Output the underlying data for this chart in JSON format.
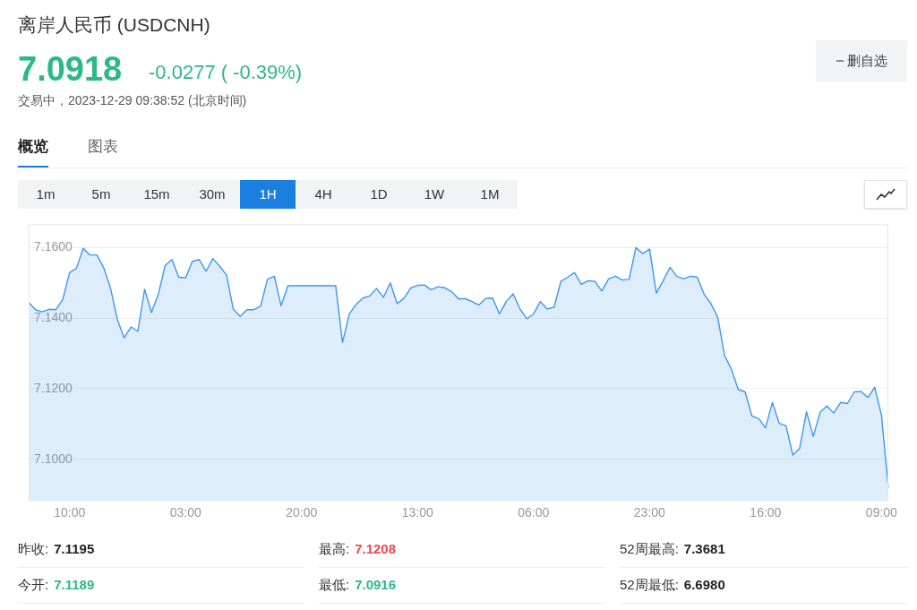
{
  "chart_data": {
    "type": "area",
    "title": "离岸人民币 (USDCNH)",
    "annotations": [
      "7.0918",
      "-0.0277 ( -0.39%)",
      "交易中，2023-12-29 09:38:52 (北京时间)",
      "删自选",
      "概览",
      "图表",
      "1m",
      "5m",
      "15m",
      "30m",
      "1H",
      "4H",
      "1D",
      "1W",
      "1M",
      "昨收:",
      "7.1195",
      "最高:",
      "7.1208",
      "52周最高:",
      "7.3681",
      "今开:",
      "7.1189",
      "最低:",
      "7.0916",
      "52周最低:",
      "6.6980"
    ],
    "categories": [
      null,
      null,
      null,
      null,
      null,
      null,
      "10:00",
      null,
      null,
      null,
      null,
      null,
      null,
      null,
      null,
      null,
      null,
      null,
      null,
      null,
      null,
      null,
      null,
      "03:00",
      null,
      null,
      null,
      null,
      null,
      null,
      null,
      null,
      null,
      null,
      null,
      null,
      null,
      null,
      null,
      null,
      "20:00",
      null,
      null,
      null,
      null,
      null,
      null,
      null,
      null,
      null,
      null,
      null,
      null,
      null,
      null,
      null,
      null,
      "13:00",
      null,
      null,
      null,
      null,
      null,
      null,
      null,
      null,
      null,
      null,
      null,
      null,
      null,
      null,
      null,
      null,
      "06:00",
      null,
      null,
      null,
      null,
      null,
      null,
      null,
      null,
      null,
      null,
      null,
      null,
      null,
      null,
      null,
      null,
      "23:00",
      null,
      null,
      null,
      null,
      null,
      null,
      null,
      null,
      null,
      null,
      null,
      null,
      null,
      null,
      null,
      null,
      "16:00",
      null,
      null,
      null,
      null,
      null,
      null,
      null,
      null,
      null,
      null,
      null,
      null,
      null,
      null,
      null,
      null,
      "09:00",
      null
    ],
    "series": [
      {
        "color": "#3d97f0",
        "values": [
          7.1445,
          7.1424,
          7.1418,
          7.1425,
          7.1424,
          7.1453,
          7.1529,
          7.1541,
          7.1598,
          7.1579,
          7.1579,
          7.1543,
          7.1485,
          7.1396,
          7.1344,
          7.1375,
          7.1363,
          7.1482,
          7.1416,
          7.1467,
          7.1549,
          7.1566,
          7.1516,
          7.1514,
          7.1561,
          7.1566,
          7.1533,
          7.1569,
          7.1547,
          7.1522,
          7.1425,
          7.1405,
          7.1424,
          7.1424,
          7.1434,
          7.151,
          7.1519,
          7.1435,
          7.1492,
          7.1492,
          7.1492,
          7.1492,
          7.1492,
          7.1492,
          7.1492,
          7.1492,
          7.1331,
          7.1412,
          7.1439,
          7.1457,
          7.1463,
          7.1484,
          7.1459,
          7.15,
          7.1441,
          7.1456,
          7.1486,
          7.1493,
          7.1494,
          7.148,
          7.1489,
          7.1486,
          7.1475,
          7.1455,
          7.1455,
          7.1447,
          7.1437,
          7.1456,
          7.1457,
          7.1412,
          7.1447,
          7.1469,
          7.1427,
          7.1398,
          7.1412,
          7.1447,
          7.1426,
          7.1431,
          7.1504,
          7.1516,
          7.1529,
          7.1496,
          7.1506,
          7.1504,
          7.1477,
          7.1511,
          7.1519,
          7.1508,
          7.151,
          7.16,
          7.1583,
          7.1596,
          7.1471,
          7.1506,
          7.1544,
          7.1518,
          7.1511,
          7.1519,
          7.1516,
          7.1468,
          7.1441,
          7.1402,
          7.1294,
          7.1255,
          7.1198,
          7.1191,
          7.1123,
          7.1115,
          7.1089,
          7.1161,
          7.1102,
          7.1095,
          7.1012,
          7.1031,
          7.1135,
          7.1065,
          7.1133,
          7.1151,
          7.1131,
          7.1161,
          7.1158,
          7.1191,
          7.1192,
          7.1175,
          7.1204,
          7.1125,
          7.0918
        ]
      }
    ],
    "ylim": [
      7.0882,
      7.1666
    ],
    "yticks": [
      {
        "value": 7.1,
        "label": "7.1000"
      },
      {
        "value": 7.12,
        "label": "7.1200"
      },
      {
        "value": 7.14,
        "label": "7.1400"
      },
      {
        "value": 7.16,
        "label": "7.1600"
      }
    ],
    "grid": "y",
    "legend": false,
    "marker": "none",
    "line_style": "solid"
  }
}
